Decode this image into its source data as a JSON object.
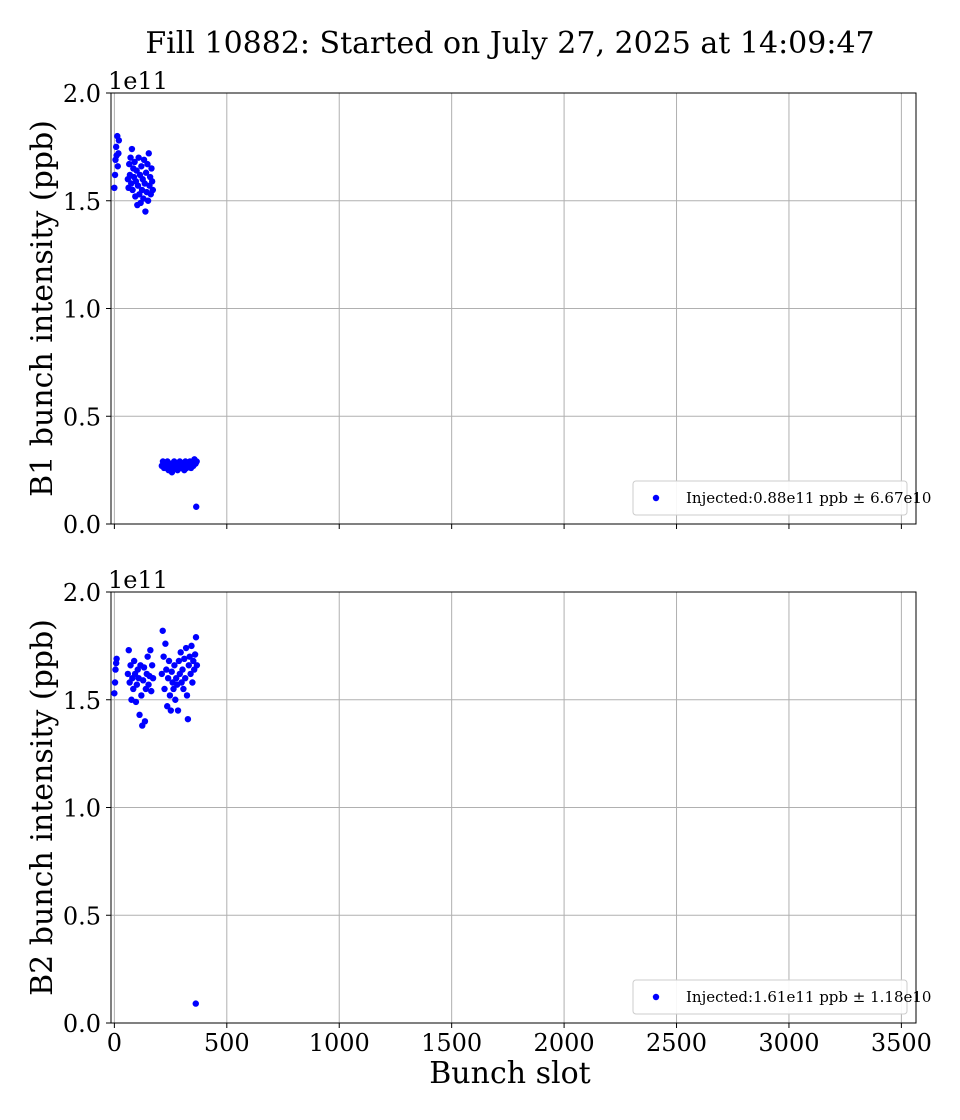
{
  "figure": {
    "title": "Fill 10882: Started on July 27, 2025 at 14:09:47",
    "xlabel": "Bunch slot"
  },
  "colors": {
    "points": "#0000ff",
    "grid": "#b0b0b0",
    "legend_border": "#cccccc"
  },
  "chart_data": [
    {
      "type": "scatter",
      "ylabel": "B1 bunch intensity (ppb)",
      "y_offset_label": "1e11",
      "xlim": [
        -15,
        3565
      ],
      "ylim": [
        0,
        2.0
      ],
      "x_ticks": [
        0,
        500,
        1000,
        1500,
        2000,
        2500,
        3000,
        3500
      ],
      "x_tick_labels": [
        "",
        "",
        "",
        "",
        "",
        "",
        "",
        ""
      ],
      "y_ticks": [
        0.0,
        0.5,
        1.0,
        1.5,
        2.0
      ],
      "y_tick_labels": [
        "0.0",
        "0.5",
        "1.0",
        "1.5",
        "2.0"
      ],
      "grid": true,
      "legend": {
        "position": "lower-right",
        "label": "Injected:0.88e11 ppb ± 6.67e10"
      },
      "series": [
        {
          "x": [
            0,
            3,
            5,
            8,
            10,
            13,
            15,
            18,
            20,
            60,
            63,
            66,
            69,
            72,
            75,
            78,
            81,
            84,
            87,
            90,
            93,
            96,
            99,
            102,
            105,
            108,
            111,
            114,
            117,
            120,
            123,
            126,
            129,
            132,
            135,
            138,
            141,
            144,
            147,
            150,
            153,
            156,
            159,
            162,
            165,
            168,
            171,
            211,
            216,
            221,
            226,
            231,
            236,
            241,
            246,
            251,
            256,
            261,
            266,
            271,
            276,
            281,
            286,
            291,
            296,
            301,
            306,
            311,
            316,
            321,
            326,
            331,
            336,
            341,
            346,
            351,
            356,
            361,
            366,
            364
          ],
          "y": [
            1.56,
            1.62,
            1.69,
            1.75,
            1.71,
            1.8,
            1.66,
            1.72,
            1.78,
            1.6,
            1.56,
            1.67,
            1.62,
            1.7,
            1.58,
            1.74,
            1.55,
            1.65,
            1.61,
            1.68,
            1.52,
            1.59,
            1.64,
            1.48,
            1.57,
            1.7,
            1.53,
            1.62,
            1.49,
            1.66,
            1.55,
            1.6,
            1.51,
            1.69,
            1.58,
            1.45,
            1.63,
            1.54,
            1.67,
            1.5,
            1.72,
            1.57,
            1.61,
            1.53,
            1.65,
            1.59,
            1.55,
            0.27,
            0.29,
            0.26,
            0.28,
            0.27,
            0.29,
            0.25,
            0.28,
            0.26,
            0.24,
            0.27,
            0.29,
            0.26,
            0.28,
            0.25,
            0.27,
            0.29,
            0.26,
            0.28,
            0.27,
            0.25,
            0.29,
            0.26,
            0.28,
            0.27,
            0.29,
            0.26,
            0.28,
            0.27,
            0.3,
            0.28,
            0.29,
            0.08
          ]
        }
      ]
    },
    {
      "type": "scatter",
      "ylabel": "B2 bunch intensity (ppb)",
      "y_offset_label": "1e11",
      "xlim": [
        -15,
        3565
      ],
      "ylim": [
        0,
        2.0
      ],
      "x_ticks": [
        0,
        500,
        1000,
        1500,
        2000,
        2500,
        3000,
        3500
      ],
      "x_tick_labels": [
        "0",
        "500",
        "1000",
        "1500",
        "2000",
        "2500",
        "3000",
        "3500"
      ],
      "y_ticks": [
        0.0,
        0.5,
        1.0,
        1.5,
        2.0
      ],
      "y_tick_labels": [
        "0.0",
        "0.5",
        "1.0",
        "1.5",
        "2.0"
      ],
      "grid": true,
      "legend": {
        "position": "lower-right",
        "label": "Injected:1.61e11 ppb ± 1.18e10"
      },
      "series": [
        {
          "x": [
            0,
            3,
            5,
            8,
            10,
            60,
            64,
            68,
            72,
            76,
            80,
            84,
            88,
            92,
            96,
            100,
            104,
            108,
            112,
            116,
            120,
            124,
            128,
            132,
            136,
            140,
            144,
            148,
            152,
            156,
            160,
            164,
            168,
            172,
            211,
            215,
            219,
            223,
            227,
            231,
            235,
            239,
            243,
            247,
            251,
            255,
            259,
            263,
            267,
            271,
            275,
            279,
            283,
            287,
            291,
            295,
            299,
            303,
            307,
            311,
            315,
            319,
            323,
            327,
            331,
            335,
            339,
            343,
            347,
            351,
            355,
            359,
            363,
            367,
            362
          ],
          "y": [
            1.53,
            1.58,
            1.64,
            1.67,
            1.69,
            1.62,
            1.73,
            1.58,
            1.66,
            1.5,
            1.6,
            1.55,
            1.68,
            1.62,
            1.49,
            1.57,
            1.64,
            1.6,
            1.43,
            1.66,
            1.52,
            1.38,
            1.59,
            1.65,
            1.4,
            1.55,
            1.62,
            1.7,
            1.57,
            1.61,
            1.73,
            1.54,
            1.66,
            1.6,
            1.62,
            1.82,
            1.7,
            1.55,
            1.76,
            1.64,
            1.47,
            1.6,
            1.68,
            1.52,
            1.45,
            1.63,
            1.58,
            1.55,
            1.66,
            1.5,
            1.6,
            1.57,
            1.45,
            1.68,
            1.62,
            1.72,
            1.58,
            1.64,
            1.55,
            1.69,
            1.6,
            1.74,
            1.52,
            1.41,
            1.66,
            1.7,
            1.62,
            1.75,
            1.58,
            1.68,
            1.64,
            1.71,
            1.79,
            1.66,
            0.09
          ]
        }
      ]
    }
  ]
}
